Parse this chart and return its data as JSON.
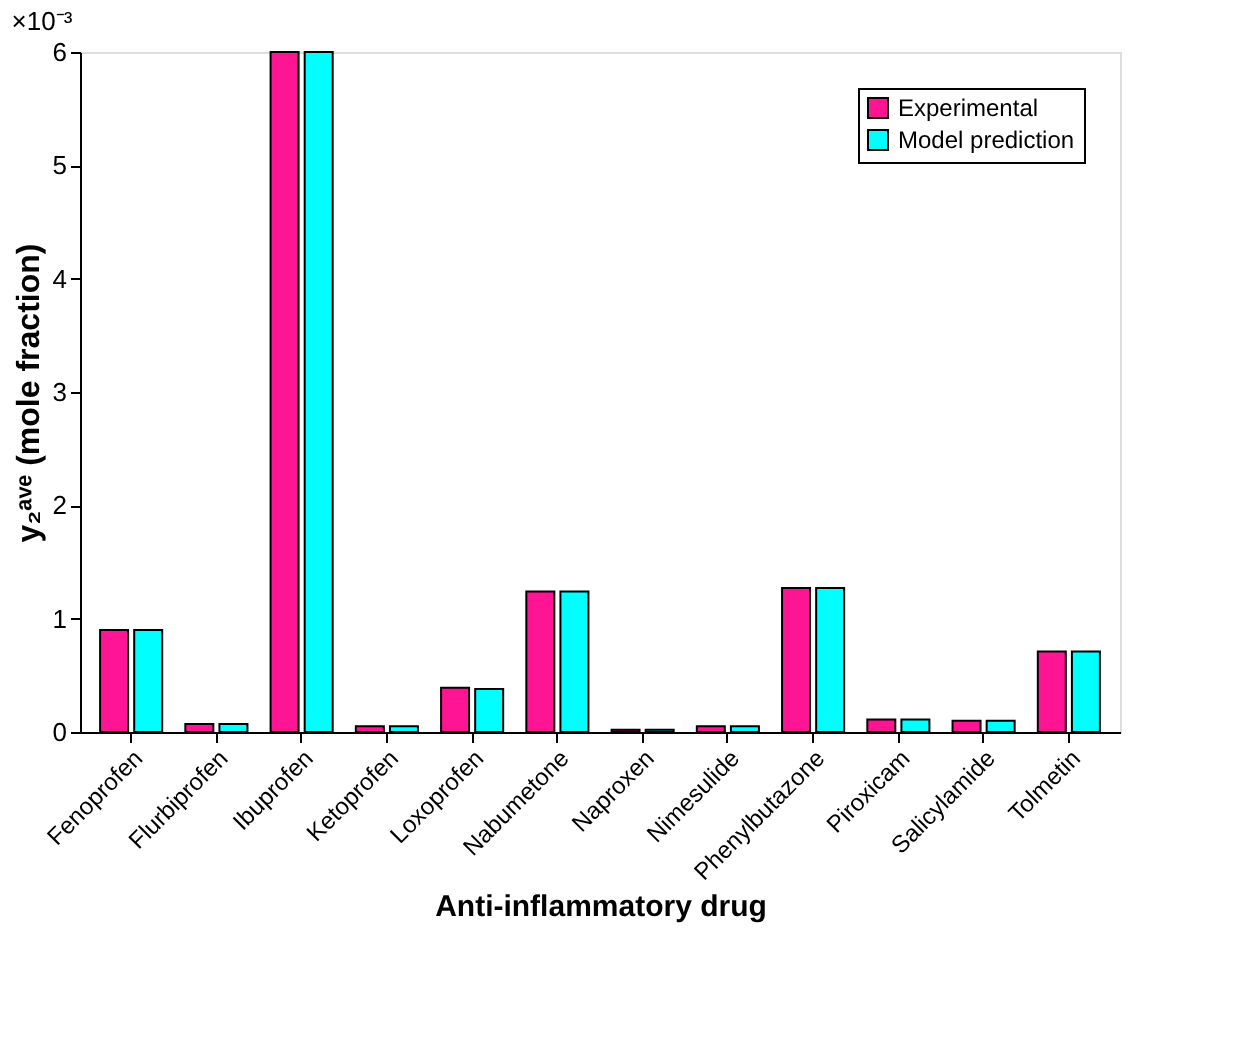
{
  "chart_data": {
    "type": "bar",
    "xlabel": "Anti-inflammatory drug",
    "ylabel": "y₂ᵃᵛᵉ (mole fraction)",
    "categories": [
      "Fenoprofen",
      "Flurbiprofen",
      "Ibuprofen",
      "Ketoprofen",
      "Loxoprofen",
      "Nabumetone",
      "Naproxen",
      "Nimesulide",
      "Phenylbutazone",
      "Piroxicam",
      "Salicylamide",
      "Tolmetin"
    ],
    "series": [
      {
        "name": "Experimental",
        "color": "#ff1493",
        "values": [
          0.9,
          0.07,
          6,
          0.05,
          0.39,
          1.24,
          0.02,
          0.05,
          1.27,
          0.11,
          0.1,
          0.71
        ]
      },
      {
        "name": "Model prediction",
        "color": "#00ffff",
        "values": [
          0.9,
          0.07,
          6,
          0.05,
          0.38,
          1.24,
          0.02,
          0.05,
          1.27,
          0.11,
          0.1,
          0.71
        ]
      }
    ],
    "ylim": [
      0,
      6
    ],
    "yticks": [
      0,
      1,
      2,
      3,
      4,
      5,
      6
    ],
    "annotations": [
      "×10⁻³"
    ],
    "legend": "top right",
    "grid": false
  }
}
